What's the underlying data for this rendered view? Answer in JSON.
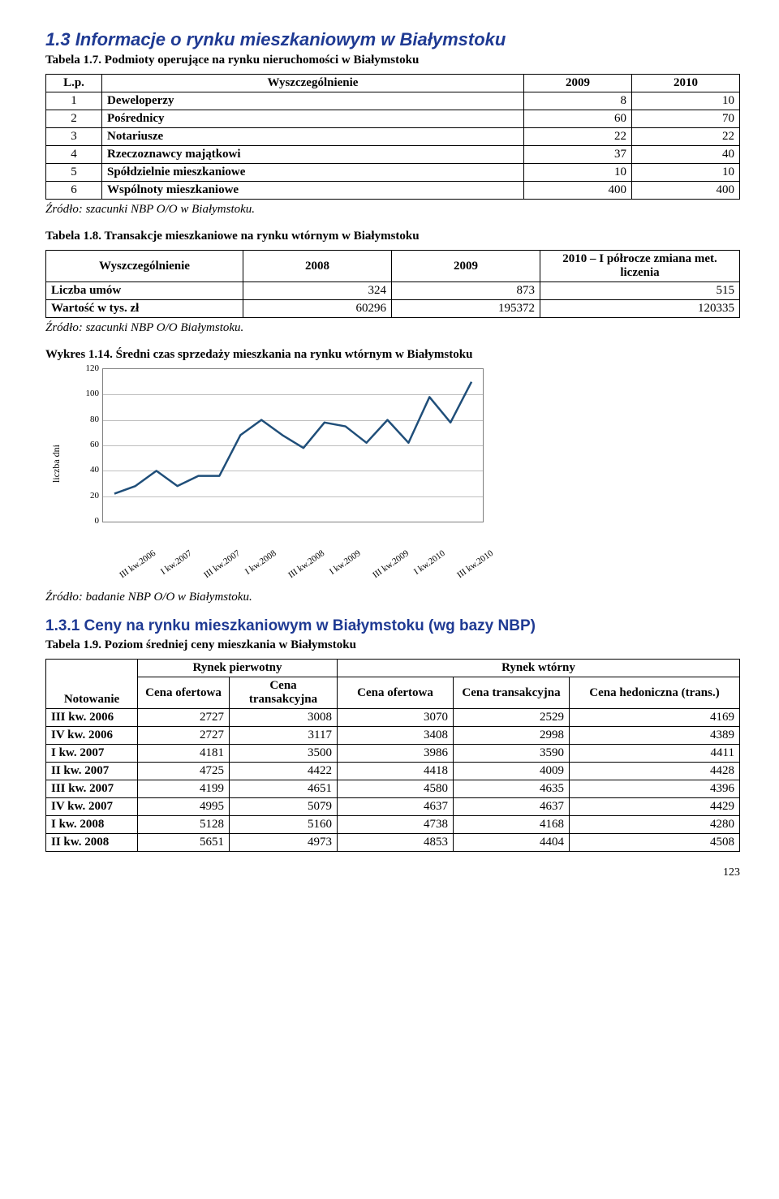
{
  "section_heading": "1.3  Informacje o rynku mieszkaniowym w Białymstoku",
  "t17": {
    "caption": "Tabela 1.7. Podmioty operujące na rynku nieruchomości w Białymstoku",
    "head": {
      "c0": "L.p.",
      "c1": "Wyszczególnienie",
      "c2": "2009",
      "c3": "2010"
    },
    "rows": [
      {
        "lp": "1",
        "name": "Deweloperzy",
        "v2009": "8",
        "v2010": "10"
      },
      {
        "lp": "2",
        "name": "Pośrednicy",
        "v2009": "60",
        "v2010": "70"
      },
      {
        "lp": "3",
        "name": "Notariusze",
        "v2009": "22",
        "v2010": "22"
      },
      {
        "lp": "4",
        "name": "Rzeczoznawcy majątkowi",
        "v2009": "37",
        "v2010": "40"
      },
      {
        "lp": "5",
        "name": "Spółdzielnie mieszkaniowe",
        "v2009": "10",
        "v2010": "10"
      },
      {
        "lp": "6",
        "name": "Wspólnoty mieszkaniowe",
        "v2009": "400",
        "v2010": "400"
      }
    ],
    "source": "Źródło: szacunki NBP O/O w Białymstoku."
  },
  "t18": {
    "caption": "Tabela 1.8. Transakcje mieszkaniowe na rynku wtórnym w Białymstoku",
    "head": {
      "c0": "Wyszczególnienie",
      "c1": "2008",
      "c2": "2009",
      "c3": "2010 – I półrocze zmiana met. liczenia"
    },
    "rows": [
      {
        "name": "Liczba umów",
        "v2008": "324",
        "v2009": "873",
        "v2010": "515"
      },
      {
        "name": "Wartość w tys. zł",
        "v2008": "60296",
        "v2009": "195372",
        "v2010": "120335"
      }
    ],
    "source": "Źródło: szacunki NBP O/O Białymstoku."
  },
  "chart": {
    "caption": "Wykres 1.14. Średni czas sprzedaży mieszkania na rynku wtórnym w Białymstoku",
    "y_axis_title": "liczba dni",
    "y_min": 0,
    "y_max": 120,
    "y_step": 20,
    "line_color": "#1f4e79",
    "line_width": 2.5,
    "background_color": "#ffffff",
    "grid_color": "#bfbfbf",
    "border_color": "#808080",
    "x_labels": [
      "III kw.2006",
      "I kw.2007",
      "III kw.2007",
      "I kw.2008",
      "III kw.2008",
      "I kw.2009",
      "III kw.2009",
      "I kw.2010",
      "III kw.2010"
    ],
    "values": [
      22,
      28,
      40,
      28,
      36,
      36,
      68,
      80,
      68,
      58,
      78,
      75,
      62,
      80,
      62,
      98,
      78,
      110
    ],
    "source": "Źródło: badanie NBP O/O w Białymstoku."
  },
  "subsection_heading": "1.3.1  Ceny na rynku mieszkaniowym w Białymstoku (wg bazy NBP)",
  "t19": {
    "caption": "Tabela 1.9. Poziom średniej ceny mieszkania w Białymstoku",
    "head": {
      "notowanie": "Notowanie",
      "rp": "Rynek pierwotny",
      "rw": "Rynek wtórny",
      "co": "Cena ofertowa",
      "ct": "Cena transakcyjna",
      "ch": "Cena hedoniczna (trans.)"
    },
    "rows": [
      {
        "period": "III kw. 2006",
        "rp_co": "2727",
        "rp_ct": "3008",
        "rw_co": "3070",
        "rw_ct": "2529",
        "rw_ch": "4169"
      },
      {
        "period": "IV kw. 2006",
        "rp_co": "2727",
        "rp_ct": "3117",
        "rw_co": "3408",
        "rw_ct": "2998",
        "rw_ch": "4389"
      },
      {
        "period": "I kw. 2007",
        "rp_co": "4181",
        "rp_ct": "3500",
        "rw_co": "3986",
        "rw_ct": "3590",
        "rw_ch": "4411"
      },
      {
        "period": "II kw. 2007",
        "rp_co": "4725",
        "rp_ct": "4422",
        "rw_co": "4418",
        "rw_ct": "4009",
        "rw_ch": "4428"
      },
      {
        "period": "III kw. 2007",
        "rp_co": "4199",
        "rp_ct": "4651",
        "rw_co": "4580",
        "rw_ct": "4635",
        "rw_ch": "4396"
      },
      {
        "period": "IV kw. 2007",
        "rp_co": "4995",
        "rp_ct": "5079",
        "rw_co": "4637",
        "rw_ct": "4637",
        "rw_ch": "4429"
      },
      {
        "period": "I kw. 2008",
        "rp_co": "5128",
        "rp_ct": "5160",
        "rw_co": "4738",
        "rw_ct": "4168",
        "rw_ch": "4280"
      },
      {
        "period": "II kw. 2008",
        "rp_co": "5651",
        "rp_ct": "4973",
        "rw_co": "4853",
        "rw_ct": "4404",
        "rw_ch": "4508"
      }
    ]
  },
  "page_number": "123"
}
